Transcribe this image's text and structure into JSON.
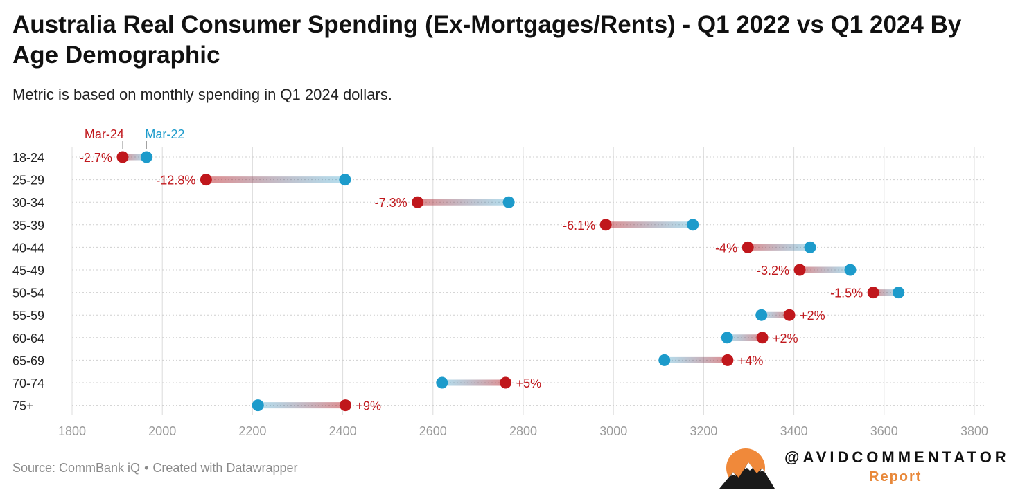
{
  "header": {
    "title": "Australia Real Consumer Spending (Ex-Mortgages/Rents) - Q1 2022 vs Q1 2024 By Age Demographic",
    "subtitle": "Metric is based on monthly spending in Q1 2024 dollars."
  },
  "footer": {
    "source": "Source: CommBank iQ",
    "separator": "•",
    "created_with": "Created with Datawrapper"
  },
  "brand": {
    "handle": "@AVIDCOMMENTATOR",
    "report": "Report",
    "logo_icon": "mountain-sun-logo-icon"
  },
  "chart_data": {
    "type": "dot-plot",
    "legend_placement": "top-left",
    "grid": true,
    "series": [
      {
        "name": "Mar-24",
        "color": "#c0171c"
      },
      {
        "name": "Mar-22",
        "color": "#1d9bcb"
      }
    ],
    "xlim": [
      1800,
      3800
    ],
    "xticks": [
      "1800",
      "2000",
      "2200",
      "2400",
      "2600",
      "2800",
      "3000",
      "3200",
      "3400",
      "3600",
      "3800"
    ],
    "rows": [
      {
        "category": "18-24",
        "mar22": 1965,
        "mar24": 1912,
        "label": "-2.7%"
      },
      {
        "category": "25-29",
        "mar22": 2405,
        "mar24": 2097,
        "label": "-12.8%"
      },
      {
        "category": "30-34",
        "mar22": 2768,
        "mar24": 2566,
        "label": "-7.3%"
      },
      {
        "category": "35-39",
        "mar22": 3176,
        "mar24": 2983,
        "label": "-6.1%"
      },
      {
        "category": "40-44",
        "mar22": 3436,
        "mar24": 3298,
        "label": "-4%"
      },
      {
        "category": "45-49",
        "mar22": 3525,
        "mar24": 3413,
        "label": "-3.2%"
      },
      {
        "category": "50-54",
        "mar22": 3632,
        "mar24": 3576,
        "label": "-1.5%"
      },
      {
        "category": "55-59",
        "mar22": 3328,
        "mar24": 3390,
        "label": "+2%"
      },
      {
        "category": "60-64",
        "mar22": 3252,
        "mar24": 3330,
        "label": "+2%"
      },
      {
        "category": "65-69",
        "mar22": 3113,
        "mar24": 3253,
        "label": "+4%"
      },
      {
        "category": "70-74",
        "mar22": 2620,
        "mar24": 2761,
        "label": "+5%"
      },
      {
        "category": "75+",
        "mar22": 2212,
        "mar24": 2406,
        "label": "+9%"
      }
    ]
  }
}
